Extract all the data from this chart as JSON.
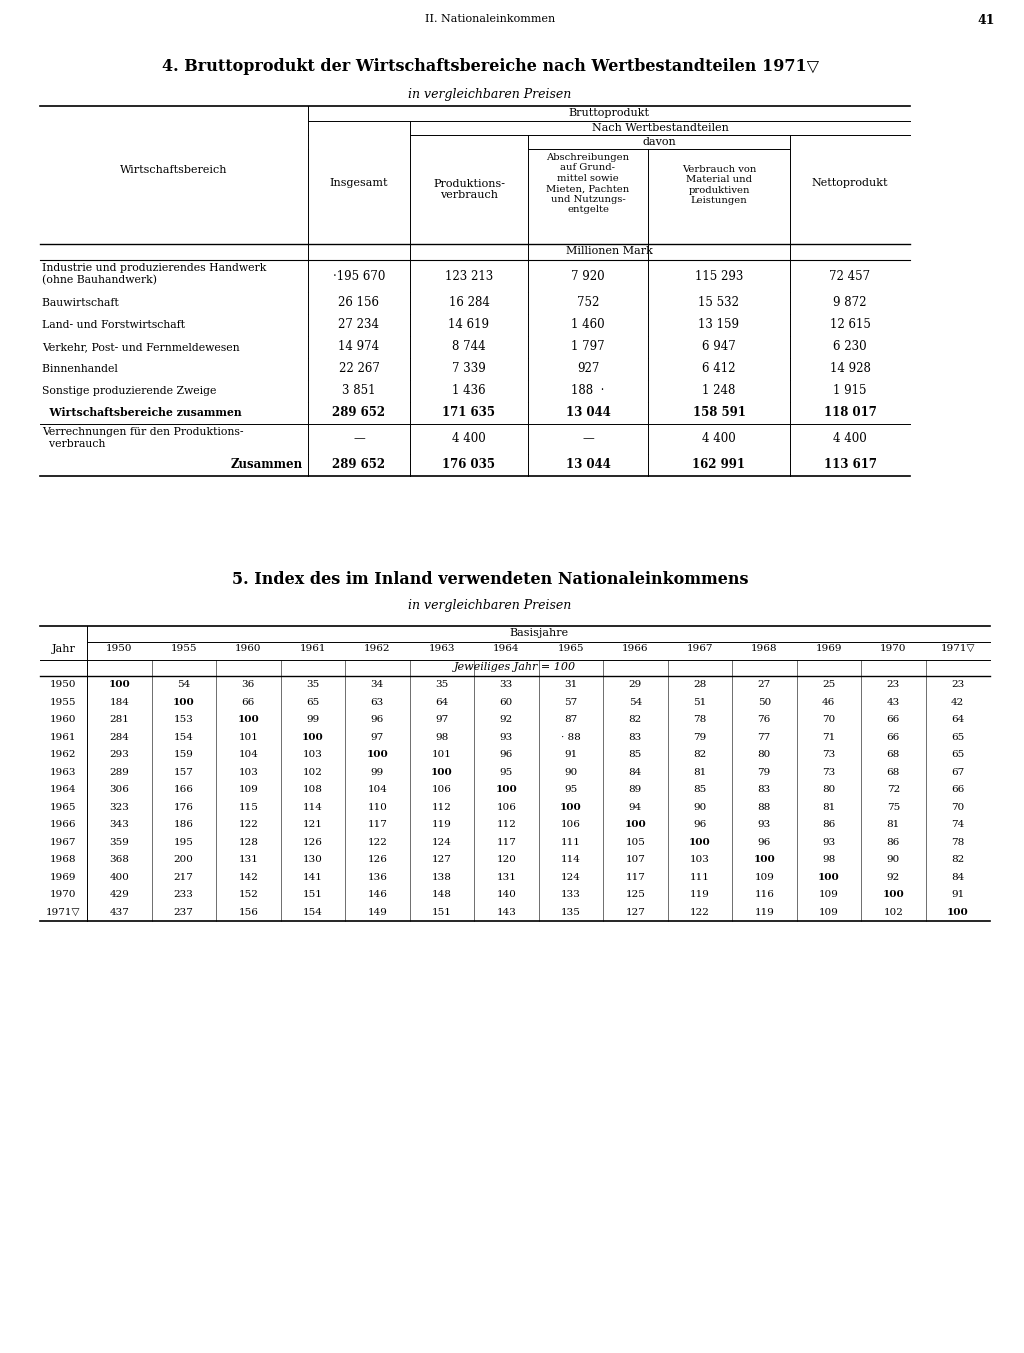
{
  "page_header": "II. Nationaleinkommen",
  "page_number": "41",
  "table1_title": "4. Bruttoprodukt der Wirtschaftsbereiche nach Wertbestandteilen 1971▽",
  "table1_subtitle": "in vergleichbaren Preisen",
  "table2_title": "5. Index des im Inland verwendeten Nationaleinkommens",
  "table2_subtitle": "in vergleichbaren Preisen",
  "table1_rows": [
    {
      "label": "Industrie und produzierendes Handwerk",
      "label2": "(ohne Bauhandwerk)                            ",
      "dots": true,
      "insgesamt": "·195 670",
      "produktionsverbrauch": "123 213",
      "abschreibungen": "7 920",
      "verbrauch": "115 293",
      "nettoprodukt": "72 457",
      "bold": false
    },
    {
      "label": "Bauwirtschaft                                      ",
      "dots": true,
      "insgesamt": "26 156",
      "produktionsverbrauch": "16 284",
      "abschreibungen": "752",
      "verbrauch": "15 532",
      "nettoprodukt": "9 872",
      "bold": false
    },
    {
      "label": "Land- und Forstwirtschaft                      ",
      "dots": true,
      "insgesamt": "27 234",
      "produktionsverbrauch": "14 619",
      "abschreibungen": "1 460",
      "verbrauch": "13 159",
      "nettoprodukt": "12 615",
      "bold": false
    },
    {
      "label": "Verkehr, Post- und Fernmeldewesen       ",
      "dots": true,
      "insgesamt": "14 974",
      "produktionsverbrauch": "8 744",
      "abschreibungen": "1 797",
      "verbrauch": "6 947",
      "nettoprodukt": "6 230",
      "bold": false
    },
    {
      "label": "Binnenhandel                                   ",
      "dots": true,
      "insgesamt": "22 267",
      "produktionsverbrauch": "7 339",
      "abschreibungen": "927",
      "verbrauch": "6 412",
      "nettoprodukt": "14 928",
      "bold": false
    },
    {
      "label": "Sonstige produzierende Zweige              ",
      "dots": true,
      "insgesamt": "3 851",
      "produktionsverbrauch": "1 436",
      "abschreibungen": "188  ·",
      "verbrauch": "1 248",
      "nettoprodukt": "1 915",
      "bold": false
    },
    {
      "label": "  Wirtschaftsbereiche zusammen           ",
      "dots": true,
      "insgesamt": "289 652",
      "produktionsverbrauch": "171 635",
      "abschreibungen": "13 044",
      "verbrauch": "158 591",
      "nettoprodukt": "118 017",
      "bold": true
    },
    {
      "label": "Verrechnungen für den Produktions-",
      "label2": "  verbrauch                                  ",
      "dots": true,
      "insgesamt": "—",
      "produktionsverbrauch": "4 400",
      "abschreibungen": "—",
      "verbrauch": "4 400",
      "nettoprodukt": "4 400",
      "bold": false
    },
    {
      "label": "Zusammen",
      "indent_label": true,
      "insgesamt": "289 652",
      "produktionsverbrauch": "176 035",
      "abschreibungen": "13 044",
      "verbrauch": "162 991",
      "nettoprodukt": "113 617",
      "bold": true
    }
  ],
  "table2_basis_years": [
    "1950",
    "1955",
    "1960",
    "1961",
    "1962",
    "1963",
    "1964",
    "1965",
    "1966",
    "1967",
    "1968",
    "1969",
    "1970",
    "1971▽"
  ],
  "table2_rows": [
    {
      "jahr": "1950",
      "vals": [
        "100",
        "54",
        "36",
        "35",
        "34",
        "35",
        "33",
        "31",
        "29",
        "28",
        "27",
        "25",
        "23",
        "23"
      ]
    },
    {
      "jahr": "1955",
      "vals": [
        "184",
        "100",
        "66",
        "65",
        "63",
        "64",
        "60",
        "57",
        "54",
        "51",
        "50",
        "46",
        "43",
        "42"
      ]
    },
    {
      "jahr": "1960",
      "vals": [
        "281",
        "153",
        "100",
        "99",
        "96",
        "97",
        "92",
        "87",
        "82",
        "78",
        "76",
        "70",
        "66",
        "64"
      ]
    },
    {
      "jahr": "1961",
      "vals": [
        "284",
        "154",
        "101",
        "100",
        "97",
        "98",
        "93",
        "· 88",
        "83",
        "79",
        "77",
        "71",
        "66",
        "65"
      ]
    },
    {
      "jahr": "1962",
      "vals": [
        "293",
        "159",
        "104",
        "103",
        "100",
        "101",
        "96",
        "91",
        "85",
        "82",
        "80",
        "73",
        "68",
        "65"
      ]
    },
    {
      "jahr": "1963",
      "vals": [
        "289",
        "157",
        "103",
        "102",
        "99",
        "100",
        "95",
        "90",
        "84",
        "81",
        "79",
        "73",
        "68",
        "67"
      ]
    },
    {
      "jahr": "1964",
      "vals": [
        "306",
        "166",
        "109",
        "108",
        "104",
        "106",
        "100",
        "95",
        "89",
        "85",
        "83",
        "80",
        "72",
        "66"
      ]
    },
    {
      "jahr": "1965",
      "vals": [
        "323",
        "176",
        "115",
        "114",
        "110",
        "112",
        "106",
        "100",
        "94",
        "90",
        "88",
        "81",
        "75",
        "70"
      ]
    },
    {
      "jahr": "1966",
      "vals": [
        "343",
        "186",
        "122",
        "121",
        "117",
        "119",
        "112",
        "106",
        "100",
        "96",
        "93",
        "86",
        "81",
        "74"
      ]
    },
    {
      "jahr": "1967",
      "vals": [
        "359",
        "195",
        "128",
        "126",
        "122",
        "124",
        "117",
        "111",
        "105",
        "100",
        "96",
        "93",
        "86",
        "78"
      ]
    },
    {
      "jahr": "1968",
      "vals": [
        "368",
        "200",
        "131",
        "130",
        "126",
        "127",
        "120",
        "114",
        "107",
        "103",
        "100",
        "98",
        "90",
        "82"
      ]
    },
    {
      "jahr": "1969",
      "vals": [
        "400",
        "217",
        "142",
        "141",
        "136",
        "138",
        "131",
        "124",
        "117",
        "111",
        "109",
        "100",
        "92",
        "84"
      ]
    },
    {
      "jahr": "1970",
      "vals": [
        "429",
        "233",
        "152",
        "151",
        "146",
        "148",
        "140",
        "133",
        "125",
        "119",
        "116",
        "109",
        "100",
        "91"
      ]
    },
    {
      "jahr": "1971▽",
      "vals": [
        "437",
        "237",
        "156",
        "154",
        "149",
        "151",
        "143",
        "135",
        "127",
        "122",
        "119",
        "109",
        "102",
        "100"
      ]
    }
  ]
}
